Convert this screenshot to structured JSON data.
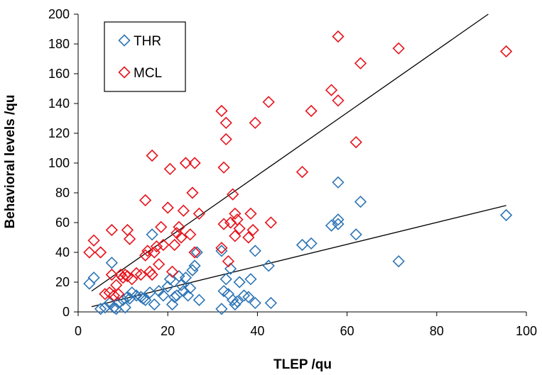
{
  "chart_data": {
    "type": "scatter",
    "title": "",
    "xlabel": "TLEP /qu",
    "ylabel": "Behavioral levels /qu",
    "xlim": [
      0,
      100
    ],
    "ylim": [
      0,
      200
    ],
    "xticks": [
      "0",
      "20",
      "40",
      "60",
      "80",
      "100"
    ],
    "yticks": [
      "0",
      "20",
      "40",
      "60",
      "80",
      "100",
      "120",
      "140",
      "160",
      "180",
      "200"
    ],
    "grid": false,
    "legend_position": "top-left",
    "series": [
      {
        "name": "THR",
        "color": "#2e75b6",
        "marker": "diamond-open",
        "points": [
          [
            2.5,
            19
          ],
          [
            3.5,
            23
          ],
          [
            5,
            2
          ],
          [
            6,
            3
          ],
          [
            7,
            6
          ],
          [
            7.5,
            33
          ],
          [
            8,
            3
          ],
          [
            8.5,
            2
          ],
          [
            9,
            6
          ],
          [
            10,
            8
          ],
          [
            10.5,
            3
          ],
          [
            11,
            10
          ],
          [
            11.5,
            9
          ],
          [
            12,
            13
          ],
          [
            13,
            11
          ],
          [
            14,
            10
          ],
          [
            14.5,
            9
          ],
          [
            15,
            8
          ],
          [
            16,
            13
          ],
          [
            16.5,
            52
          ],
          [
            17,
            5
          ],
          [
            18,
            14
          ],
          [
            19,
            11
          ],
          [
            20,
            17
          ],
          [
            20.5,
            22
          ],
          [
            21,
            5
          ],
          [
            21.5,
            10
          ],
          [
            22,
            11
          ],
          [
            22.5,
            24
          ],
          [
            23,
            18
          ],
          [
            23.5,
            14
          ],
          [
            24,
            23
          ],
          [
            24.5,
            11
          ],
          [
            25,
            16
          ],
          [
            25.5,
            28
          ],
          [
            26,
            31
          ],
          [
            26.5,
            40
          ],
          [
            27,
            8
          ],
          [
            32,
            2
          ],
          [
            32.5,
            14
          ],
          [
            32,
            41
          ],
          [
            33,
            22
          ],
          [
            33.5,
            12
          ],
          [
            34,
            29
          ],
          [
            34.5,
            8
          ],
          [
            35,
            5
          ],
          [
            35.5,
            7
          ],
          [
            36,
            20
          ],
          [
            37,
            11
          ],
          [
            38,
            10
          ],
          [
            38.5,
            22
          ],
          [
            39.5,
            6
          ],
          [
            39.5,
            41
          ],
          [
            42.5,
            31
          ],
          [
            43,
            6
          ],
          [
            50,
            45
          ],
          [
            52,
            46
          ],
          [
            56.5,
            58
          ],
          [
            58,
            87
          ],
          [
            58,
            59
          ],
          [
            58,
            62
          ],
          [
            62,
            52
          ],
          [
            63,
            74
          ],
          [
            71.5,
            34
          ],
          [
            95.5,
            65
          ]
        ]
      },
      {
        "name": "MCL",
        "color": "#e8131c",
        "marker": "diamond-open",
        "points": [
          [
            2.5,
            40
          ],
          [
            3.5,
            48
          ],
          [
            5,
            40
          ],
          [
            6,
            12
          ],
          [
            7,
            13
          ],
          [
            7.5,
            25
          ],
          [
            7.5,
            55
          ],
          [
            8,
            11
          ],
          [
            8.5,
            18
          ],
          [
            9,
            12
          ],
          [
            9.5,
            25
          ],
          [
            10,
            23
          ],
          [
            10.5,
            25
          ],
          [
            11,
            24
          ],
          [
            11,
            55
          ],
          [
            11.5,
            49
          ],
          [
            12,
            22
          ],
          [
            13,
            26
          ],
          [
            14,
            25
          ],
          [
            15,
            38
          ],
          [
            15,
            75
          ],
          [
            15.5,
            41
          ],
          [
            16,
            27
          ],
          [
            16.5,
            25
          ],
          [
            16.5,
            105
          ],
          [
            17,
            40
          ],
          [
            17.5,
            44
          ],
          [
            18,
            32
          ],
          [
            18.5,
            57
          ],
          [
            19,
            45
          ],
          [
            20,
            70
          ],
          [
            20.5,
            96
          ],
          [
            21,
            27
          ],
          [
            21.5,
            45
          ],
          [
            22,
            53
          ],
          [
            22.5,
            57
          ],
          [
            23,
            50
          ],
          [
            23.5,
            68
          ],
          [
            24,
            100
          ],
          [
            25,
            52
          ],
          [
            25.5,
            80
          ],
          [
            26,
            100
          ],
          [
            26,
            40
          ],
          [
            27,
            66
          ],
          [
            32,
            43
          ],
          [
            32,
            135
          ],
          [
            32.5,
            59
          ],
          [
            33,
            127
          ],
          [
            33,
            116
          ],
          [
            32.5,
            97
          ],
          [
            33.5,
            34
          ],
          [
            34,
            60
          ],
          [
            34.5,
            79
          ],
          [
            35,
            66
          ],
          [
            35,
            51
          ],
          [
            35.5,
            62
          ],
          [
            36,
            56
          ],
          [
            38,
            50
          ],
          [
            38.5,
            66
          ],
          [
            39,
            55
          ],
          [
            39.5,
            127
          ],
          [
            42.5,
            141
          ],
          [
            43,
            60
          ],
          [
            50,
            94
          ],
          [
            52,
            135
          ],
          [
            56.5,
            149
          ],
          [
            58,
            185
          ],
          [
            58,
            142
          ],
          [
            62,
            114
          ],
          [
            63,
            167
          ],
          [
            71.5,
            177
          ],
          [
            95.5,
            175
          ]
        ]
      }
    ],
    "trendlines": [
      {
        "series": "THR",
        "x": [
          3,
          95.5
        ],
        "y": [
          3.5,
          71.5
        ]
      },
      {
        "series": "MCL",
        "x": [
          3,
          91.5
        ],
        "y": [
          14,
          200
        ]
      }
    ]
  }
}
